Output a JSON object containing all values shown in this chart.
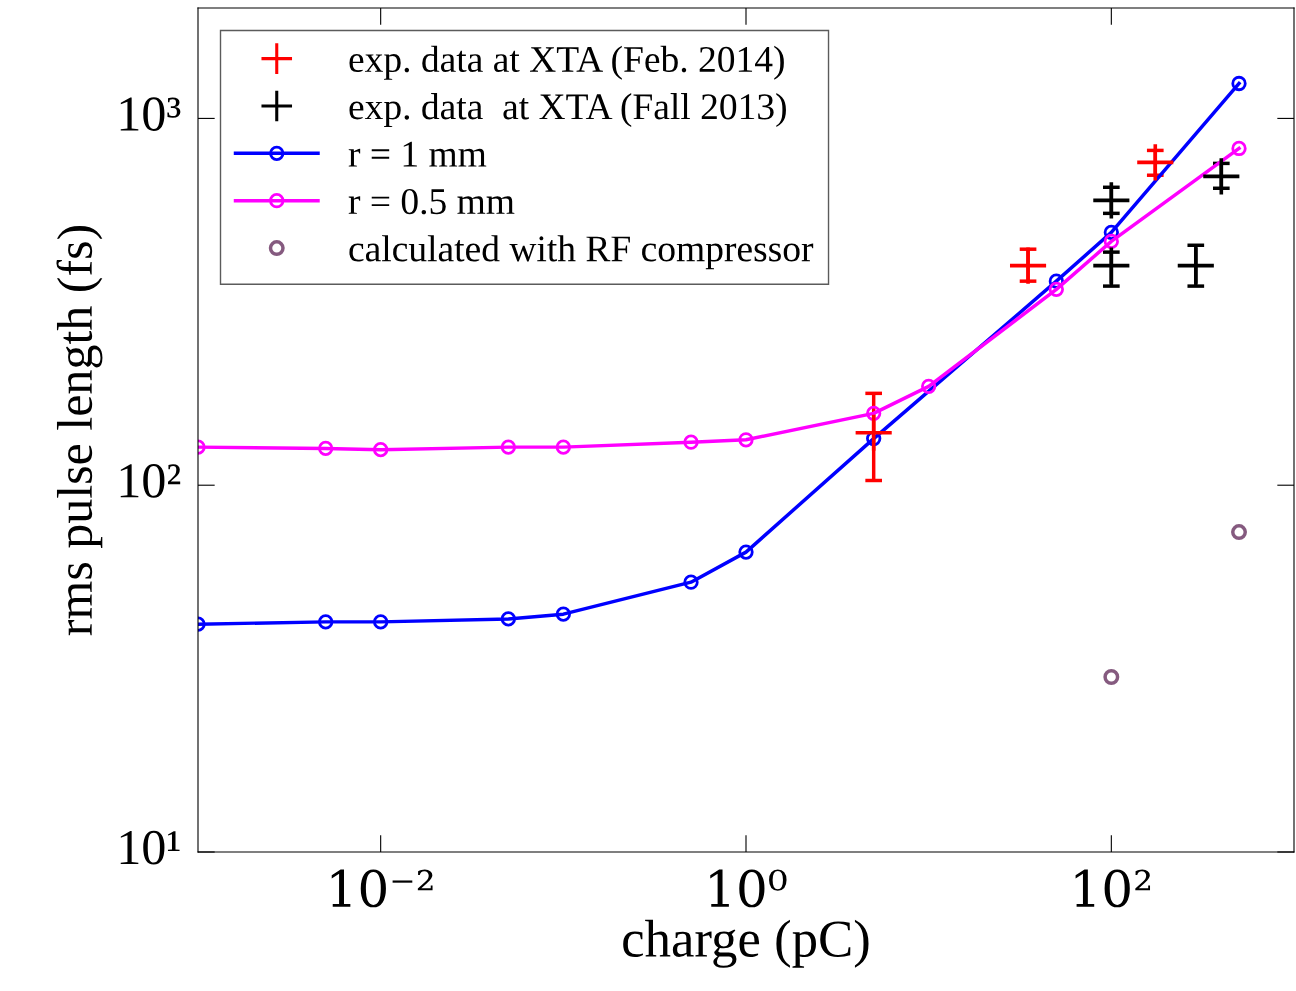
{
  "chart_data": {
    "type": "line",
    "xlabel": "charge (pC)",
    "ylabel": "rms pulse length (fs)",
    "log": "xy",
    "grid": false,
    "legend": "top left",
    "xlim": [
      0.001,
      1000
    ],
    "ylim": [
      10,
      2000
    ],
    "xticks": [
      {
        "value": 0.01,
        "label": "10⁻²"
      },
      {
        "value": 1,
        "label": "10⁰"
      },
      {
        "value": 100,
        "label": "10²"
      }
    ],
    "yticks": [
      {
        "value": 10,
        "label": "10¹"
      },
      {
        "value": 100,
        "label": "10²"
      },
      {
        "value": 1000,
        "label": "10³"
      }
    ],
    "series": [
      {
        "name": "exp. data at XTA (Feb. 2014)",
        "type": "scatter",
        "marker": "cross",
        "color": "#ff0000",
        "x": [
          5,
          35,
          174
        ],
        "values": [
          139,
          397,
          759
        ],
        "errors": [
          [
            103,
            178
          ],
          [
            360,
            440
          ],
          [
            700,
            818
          ]
        ]
      },
      {
        "name": "exp. data  at XTA (Fall 2013)",
        "type": "scatter",
        "marker": "cross",
        "color": "#000000",
        "x": [
          100,
          100,
          290,
          400
        ],
        "values": [
          598,
          397,
          397,
          695
        ],
        "errors": [
          [
            551,
            649
          ],
          [
            349,
            432
          ],
          [
            349,
            451
          ],
          [
            645,
            754
          ]
        ]
      },
      {
        "name": "r = 1 mm",
        "marker": "circle",
        "line_style": "solid",
        "color": "#0000ff",
        "x": [
          0.001,
          0.005,
          0.01,
          0.05,
          0.1,
          0.5,
          1,
          5,
          50,
          100,
          500
        ],
        "values": [
          41.8,
          42.4,
          42.4,
          43.2,
          44.5,
          54.4,
          65.7,
          134,
          360,
          489,
          1245
        ]
      },
      {
        "name": "r = 0.5 mm",
        "marker": "circle",
        "line_style": "solid",
        "color": "#ff00ff",
        "x": [
          0.001,
          0.005,
          0.01,
          0.05,
          0.1,
          0.5,
          1,
          5,
          10,
          50,
          100,
          500
        ],
        "values": [
          127,
          126,
          125,
          127,
          127,
          131,
          133,
          157,
          186,
          342,
          462,
          828
        ]
      },
      {
        "name": "calculated with RF compressor",
        "type": "scatter",
        "marker": "circle",
        "color": "#855a7f",
        "x": [
          100,
          500
        ],
        "values": [
          30,
          74.5
        ]
      }
    ]
  }
}
